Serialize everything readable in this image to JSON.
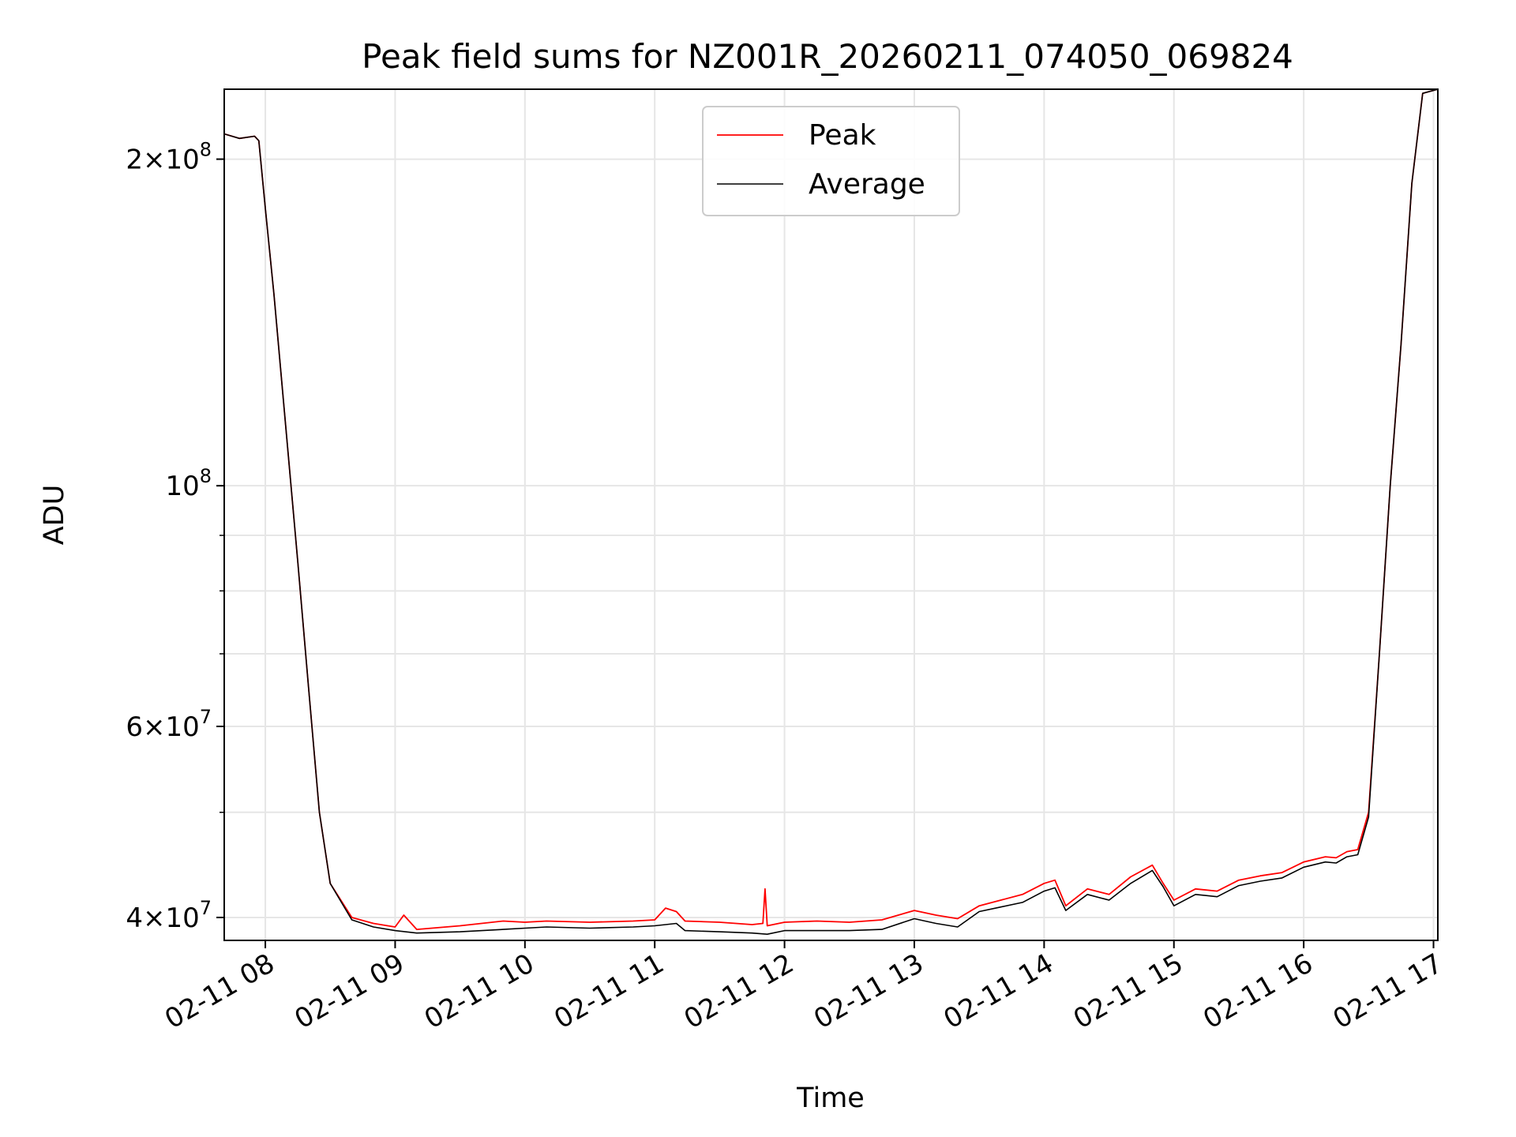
{
  "chart_data": {
    "type": "line",
    "title": "Peak field sums for NZ001R_20260211_074050_069824",
    "xlabel": "Time",
    "ylabel": "ADU",
    "yscale": "log",
    "xlim": [
      "2026-02-11T07:41",
      "2026-02-11T17:02"
    ],
    "ylim": [
      38100000,
      232000000
    ],
    "grid": true,
    "legend": {
      "position": "top-center",
      "entries": [
        "Peak",
        "Average"
      ]
    },
    "x_tick_labels": [
      "02-11 08",
      "02-11 09",
      "02-11 10",
      "02-11 11",
      "02-11 12",
      "02-11 13",
      "02-11 14",
      "02-11 15",
      "02-11 16",
      "02-11 17"
    ],
    "y_ticks": [
      {
        "mantissa": "4",
        "exp": "7"
      },
      {
        "mantissa": "6",
        "exp": "7"
      },
      {
        "mantissa": "",
        "exp": "8"
      },
      {
        "mantissa": "2",
        "exp": "8"
      }
    ],
    "series": [
      {
        "name": "Peak",
        "color": "#ff0000",
        "x": [
          "2026-02-11T07:41",
          "2026-02-11T07:48",
          "2026-02-11T07:55",
          "2026-02-11T07:57",
          "2026-02-11T08:00",
          "2026-02-11T08:04",
          "2026-02-11T08:10",
          "2026-02-11T08:15",
          "2026-02-11T08:20",
          "2026-02-11T08:25",
          "2026-02-11T08:30",
          "2026-02-11T08:40",
          "2026-02-11T08:50",
          "2026-02-11T09:00",
          "2026-02-11T09:04",
          "2026-02-11T09:10",
          "2026-02-11T09:30",
          "2026-02-11T09:50",
          "2026-02-11T10:00",
          "2026-02-11T10:10",
          "2026-02-11T10:30",
          "2026-02-11T10:50",
          "2026-02-11T11:00",
          "2026-02-11T11:05",
          "2026-02-11T11:10",
          "2026-02-11T11:14",
          "2026-02-11T11:30",
          "2026-02-11T11:45",
          "2026-02-11T11:50",
          "2026-02-11T11:51",
          "2026-02-11T11:52",
          "2026-02-11T12:00",
          "2026-02-11T12:15",
          "2026-02-11T12:30",
          "2026-02-11T12:45",
          "2026-02-11T13:00",
          "2026-02-11T13:10",
          "2026-02-11T13:20",
          "2026-02-11T13:30",
          "2026-02-11T13:40",
          "2026-02-11T13:50",
          "2026-02-11T14:00",
          "2026-02-11T14:05",
          "2026-02-11T14:10",
          "2026-02-11T14:20",
          "2026-02-11T14:30",
          "2026-02-11T14:40",
          "2026-02-11T14:50",
          "2026-02-11T14:55",
          "2026-02-11T15:00",
          "2026-02-11T15:10",
          "2026-02-11T15:20",
          "2026-02-11T15:30",
          "2026-02-11T15:40",
          "2026-02-11T15:50",
          "2026-02-11T16:00",
          "2026-02-11T16:10",
          "2026-02-11T16:15",
          "2026-02-11T16:20",
          "2026-02-11T16:25",
          "2026-02-11T16:30",
          "2026-02-11T16:35",
          "2026-02-11T16:40",
          "2026-02-11T16:45",
          "2026-02-11T16:50",
          "2026-02-11T16:55",
          "2026-02-11T17:02"
        ],
        "y": [
          211000000,
          209000000,
          210000000,
          208000000,
          180000000,
          150000000,
          110000000,
          85000000,
          65000000,
          50000000,
          43000000,
          40000000,
          39500000,
          39200000,
          40200000,
          39000000,
          39300000,
          39700000,
          39600000,
          39700000,
          39600000,
          39700000,
          39800000,
          40800000,
          40500000,
          39700000,
          39600000,
          39400000,
          39500000,
          42500000,
          39300000,
          39600000,
          39700000,
          39600000,
          39800000,
          40600000,
          40200000,
          39900000,
          41000000,
          41500000,
          42000000,
          43000000,
          43300000,
          41000000,
          42500000,
          42000000,
          43600000,
          44700000,
          43000000,
          41500000,
          42500000,
          42300000,
          43300000,
          43700000,
          44000000,
          45000000,
          45500000,
          45400000,
          46000000,
          46200000,
          50000000,
          70000000,
          100000000,
          135000000,
          190000000,
          230000000,
          232000000
        ]
      },
      {
        "name": "Average",
        "color": "#000000",
        "x": [
          "2026-02-11T07:41",
          "2026-02-11T07:48",
          "2026-02-11T07:55",
          "2026-02-11T07:57",
          "2026-02-11T08:00",
          "2026-02-11T08:04",
          "2026-02-11T08:10",
          "2026-02-11T08:15",
          "2026-02-11T08:20",
          "2026-02-11T08:25",
          "2026-02-11T08:30",
          "2026-02-11T08:40",
          "2026-02-11T08:50",
          "2026-02-11T09:00",
          "2026-02-11T09:10",
          "2026-02-11T09:30",
          "2026-02-11T09:50",
          "2026-02-11T10:00",
          "2026-02-11T10:10",
          "2026-02-11T10:30",
          "2026-02-11T10:50",
          "2026-02-11T11:00",
          "2026-02-11T11:10",
          "2026-02-11T11:14",
          "2026-02-11T11:30",
          "2026-02-11T11:45",
          "2026-02-11T11:52",
          "2026-02-11T12:00",
          "2026-02-11T12:15",
          "2026-02-11T12:30",
          "2026-02-11T12:45",
          "2026-02-11T13:00",
          "2026-02-11T13:10",
          "2026-02-11T13:20",
          "2026-02-11T13:30",
          "2026-02-11T13:40",
          "2026-02-11T13:50",
          "2026-02-11T14:00",
          "2026-02-11T14:05",
          "2026-02-11T14:10",
          "2026-02-11T14:20",
          "2026-02-11T14:30",
          "2026-02-11T14:40",
          "2026-02-11T14:50",
          "2026-02-11T14:55",
          "2026-02-11T15:00",
          "2026-02-11T15:10",
          "2026-02-11T15:20",
          "2026-02-11T15:30",
          "2026-02-11T15:40",
          "2026-02-11T15:50",
          "2026-02-11T16:00",
          "2026-02-11T16:10",
          "2026-02-11T16:15",
          "2026-02-11T16:20",
          "2026-02-11T16:25",
          "2026-02-11T16:30",
          "2026-02-11T16:35",
          "2026-02-11T16:40",
          "2026-02-11T16:45",
          "2026-02-11T16:50",
          "2026-02-11T16:55",
          "2026-02-11T17:02"
        ],
        "y": [
          211000000,
          209000000,
          210000000,
          208000000,
          180000000,
          150000000,
          110000000,
          85000000,
          65000000,
          50000000,
          43000000,
          39800000,
          39200000,
          38900000,
          38700000,
          38800000,
          39000000,
          39100000,
          39200000,
          39100000,
          39200000,
          39300000,
          39500000,
          38900000,
          38800000,
          38700000,
          38600000,
          38900000,
          38900000,
          38900000,
          39000000,
          39900000,
          39500000,
          39200000,
          40500000,
          40900000,
          41300000,
          42300000,
          42600000,
          40600000,
          42000000,
          41500000,
          43000000,
          44200000,
          42700000,
          41000000,
          42000000,
          41800000,
          42800000,
          43200000,
          43500000,
          44500000,
          45000000,
          44900000,
          45500000,
          45700000,
          49500000,
          70000000,
          100000000,
          135000000,
          190000000,
          230000000,
          232000000
        ]
      }
    ]
  }
}
